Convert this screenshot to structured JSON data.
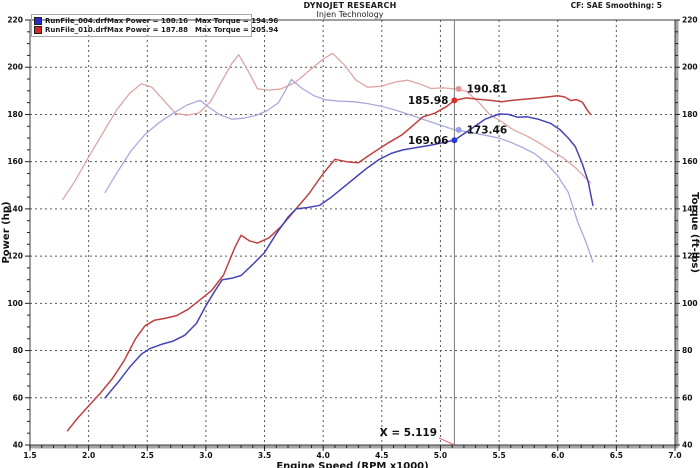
{
  "header": {
    "brand": "DYNOJET RESEARCH",
    "subtitle": "Injen Technology",
    "correction": "CF: SAE  Smoothing: 5"
  },
  "legend": {
    "rows": [
      {
        "file": "RunFile_004.drf",
        "max_power": "Max Power = 180.16",
        "max_torque": "Max Torque = 194.96",
        "color": "#2828c8"
      },
      {
        "file": "RunFile_010.drf",
        "max_power": "Max Power = 187.88",
        "max_torque": "Max Torque = 205.94",
        "color": "#d42828"
      }
    ]
  },
  "cursor": {
    "x": 5.119,
    "label": "X = 5.119",
    "line_color": "#7a7a7a",
    "pointer_color": "#d87070"
  },
  "chart_data": {
    "type": "line",
    "xlabel": "Engine Speed (RPM x1000)",
    "ylabel_left": "Power (hp)",
    "ylabel_right": "Torque (ft-lbs)",
    "xlim": [
      1.5,
      7.0
    ],
    "ylim": [
      40,
      220
    ],
    "x_ticks": [
      "1.5",
      "2.0",
      "2.5",
      "3.0",
      "3.5",
      "4.0",
      "4.5",
      "5.0",
      "5.5",
      "6.0",
      "6.5",
      "7.0"
    ],
    "y_ticks": [
      "220",
      "200",
      "180",
      "160",
      "140",
      "120",
      "100",
      "80",
      "60",
      "40"
    ],
    "x_minor_step": 0.1,
    "y_minor_step": 5,
    "grid": "dashed",
    "series": [
      {
        "name": "torque-runfile-010",
        "kind": "torque",
        "run": "RunFile_010",
        "color": "#e0a4a4",
        "width": 1.3,
        "points": [
          [
            1.78,
            144
          ],
          [
            1.88,
            151.5
          ],
          [
            2.0,
            162
          ],
          [
            2.12,
            172
          ],
          [
            2.24,
            182
          ],
          [
            2.35,
            189
          ],
          [
            2.45,
            193
          ],
          [
            2.54,
            191.5
          ],
          [
            2.64,
            186
          ],
          [
            2.74,
            180.5
          ],
          [
            2.84,
            179.7
          ],
          [
            2.94,
            180.6
          ],
          [
            3.04,
            185.5
          ],
          [
            3.14,
            194.5
          ],
          [
            3.22,
            201.5
          ],
          [
            3.28,
            205.3
          ],
          [
            3.36,
            198.5
          ],
          [
            3.44,
            190.8
          ],
          [
            3.54,
            190.3
          ],
          [
            3.64,
            190.8
          ],
          [
            3.76,
            193.5
          ],
          [
            3.88,
            198.5
          ],
          [
            4.0,
            203.5
          ],
          [
            4.08,
            205.9
          ],
          [
            4.18,
            201
          ],
          [
            4.28,
            194.5
          ],
          [
            4.38,
            191.5
          ],
          [
            4.5,
            192
          ],
          [
            4.62,
            193.8
          ],
          [
            4.72,
            194.5
          ],
          [
            4.82,
            193
          ],
          [
            4.92,
            191
          ],
          [
            5.02,
            191.3
          ],
          [
            5.119,
            190.8
          ],
          [
            5.22,
            189.8
          ],
          [
            5.32,
            185.5
          ],
          [
            5.42,
            180
          ],
          [
            5.52,
            177
          ],
          [
            5.62,
            173.5
          ],
          [
            5.74,
            170.8
          ],
          [
            5.84,
            168
          ],
          [
            5.95,
            164.5
          ],
          [
            6.05,
            161.5
          ],
          [
            6.15,
            157.5
          ],
          [
            6.24,
            153
          ],
          [
            6.28,
            151
          ]
        ]
      },
      {
        "name": "torque-runfile-004",
        "kind": "torque",
        "run": "RunFile_004",
        "color": "#a8aadc",
        "width": 1.3,
        "points": [
          [
            2.14,
            147
          ],
          [
            2.25,
            156
          ],
          [
            2.36,
            164.5
          ],
          [
            2.48,
            171.5
          ],
          [
            2.6,
            176.5
          ],
          [
            2.72,
            180.5
          ],
          [
            2.84,
            184
          ],
          [
            2.95,
            186
          ],
          [
            3.04,
            182.5
          ],
          [
            3.12,
            179.8
          ],
          [
            3.22,
            178
          ],
          [
            3.32,
            178.4
          ],
          [
            3.42,
            179.5
          ],
          [
            3.52,
            181.5
          ],
          [
            3.62,
            185
          ],
          [
            3.73,
            194.8
          ],
          [
            3.82,
            191
          ],
          [
            3.92,
            188
          ],
          [
            4.02,
            186.2
          ],
          [
            4.14,
            185.6
          ],
          [
            4.26,
            185.4
          ],
          [
            4.38,
            184.6
          ],
          [
            4.5,
            183.4
          ],
          [
            4.62,
            181.8
          ],
          [
            4.74,
            179.8
          ],
          [
            4.86,
            177.8
          ],
          [
            4.98,
            175.8
          ],
          [
            5.119,
            173.5
          ],
          [
            5.25,
            172.4
          ],
          [
            5.38,
            171.2
          ],
          [
            5.5,
            170
          ],
          [
            5.6,
            168.2
          ],
          [
            5.7,
            166
          ],
          [
            5.8,
            163.5
          ],
          [
            5.9,
            159.5
          ],
          [
            6.0,
            154
          ],
          [
            6.09,
            147
          ],
          [
            6.17,
            134.5
          ],
          [
            6.24,
            126
          ],
          [
            6.3,
            117.5
          ]
        ]
      },
      {
        "name": "power-runfile-010",
        "kind": "power",
        "run": "RunFile_010",
        "color": "#c04040",
        "width": 1.5,
        "points": [
          [
            1.82,
            46
          ],
          [
            1.9,
            51
          ],
          [
            2.0,
            56.5
          ],
          [
            2.1,
            62
          ],
          [
            2.2,
            68
          ],
          [
            2.3,
            75.5
          ],
          [
            2.4,
            85
          ],
          [
            2.48,
            90.5
          ],
          [
            2.56,
            92.8
          ],
          [
            2.65,
            93.6
          ],
          [
            2.75,
            94.8
          ],
          [
            2.85,
            97.5
          ],
          [
            2.95,
            101.5
          ],
          [
            3.05,
            105.5
          ],
          [
            3.15,
            112
          ],
          [
            3.25,
            124
          ],
          [
            3.3,
            128.8
          ],
          [
            3.37,
            126.5
          ],
          [
            3.44,
            125.5
          ],
          [
            3.54,
            127.8
          ],
          [
            3.64,
            132.5
          ],
          [
            3.76,
            139.5
          ],
          [
            3.88,
            146.5
          ],
          [
            4.0,
            155
          ],
          [
            4.1,
            161
          ],
          [
            4.2,
            160
          ],
          [
            4.3,
            159.5
          ],
          [
            4.4,
            163
          ],
          [
            4.55,
            167.8
          ],
          [
            4.67,
            171.3
          ],
          [
            4.77,
            175.5
          ],
          [
            4.85,
            179
          ],
          [
            4.95,
            180.5
          ],
          [
            5.05,
            183.3
          ],
          [
            5.119,
            185.9
          ],
          [
            5.22,
            187
          ],
          [
            5.32,
            186.4
          ],
          [
            5.42,
            186
          ],
          [
            5.52,
            185.4
          ],
          [
            5.62,
            186
          ],
          [
            5.75,
            186.6
          ],
          [
            5.88,
            187.2
          ],
          [
            6.0,
            187.9
          ],
          [
            6.06,
            187.4
          ],
          [
            6.11,
            185.9
          ],
          [
            6.16,
            186.3
          ],
          [
            6.21,
            185.2
          ],
          [
            6.25,
            182
          ],
          [
            6.28,
            180
          ]
        ]
      },
      {
        "name": "power-runfile-004",
        "kind": "power",
        "run": "RunFile_004",
        "color": "#4444b4",
        "width": 1.5,
        "points": [
          [
            2.14,
            60
          ],
          [
            2.25,
            66.5
          ],
          [
            2.35,
            73
          ],
          [
            2.45,
            78.5
          ],
          [
            2.52,
            80.8
          ],
          [
            2.62,
            82.6
          ],
          [
            2.72,
            84
          ],
          [
            2.82,
            86.5
          ],
          [
            2.92,
            91.5
          ],
          [
            3.0,
            99
          ],
          [
            3.08,
            105.5
          ],
          [
            3.14,
            110
          ],
          [
            3.22,
            110.6
          ],
          [
            3.3,
            111.8
          ],
          [
            3.4,
            116.5
          ],
          [
            3.5,
            121.5
          ],
          [
            3.6,
            129.5
          ],
          [
            3.7,
            136.5
          ],
          [
            3.77,
            140
          ],
          [
            3.87,
            140.6
          ],
          [
            3.97,
            141.5
          ],
          [
            4.07,
            145
          ],
          [
            4.17,
            149
          ],
          [
            4.28,
            153.5
          ],
          [
            4.38,
            157.5
          ],
          [
            4.48,
            161
          ],
          [
            4.58,
            163.5
          ],
          [
            4.68,
            165
          ],
          [
            4.8,
            166
          ],
          [
            4.92,
            167
          ],
          [
            5.04,
            168.3
          ],
          [
            5.119,
            169.1
          ],
          [
            5.25,
            173.5
          ],
          [
            5.38,
            178
          ],
          [
            5.5,
            180.2
          ],
          [
            5.58,
            180
          ],
          [
            5.66,
            178.8
          ],
          [
            5.74,
            179
          ],
          [
            5.84,
            177.9
          ],
          [
            5.94,
            176.2
          ],
          [
            6.02,
            173.5
          ],
          [
            6.09,
            170
          ],
          [
            6.15,
            166.4
          ],
          [
            6.21,
            159
          ],
          [
            6.26,
            151.5
          ],
          [
            6.3,
            141.5
          ]
        ]
      }
    ],
    "markers": [
      {
        "label": "185.98",
        "x": 5.119,
        "y": 185.98,
        "color": "#d83030",
        "side": "left"
      },
      {
        "label": "190.81",
        "x": 5.155,
        "y": 190.81,
        "color": "#e89494",
        "side": "right"
      },
      {
        "label": "169.06",
        "x": 5.119,
        "y": 169.06,
        "color": "#2838d8",
        "side": "left"
      },
      {
        "label": "173.46",
        "x": 5.155,
        "y": 173.46,
        "color": "#9aa0e6",
        "side": "right"
      }
    ]
  }
}
